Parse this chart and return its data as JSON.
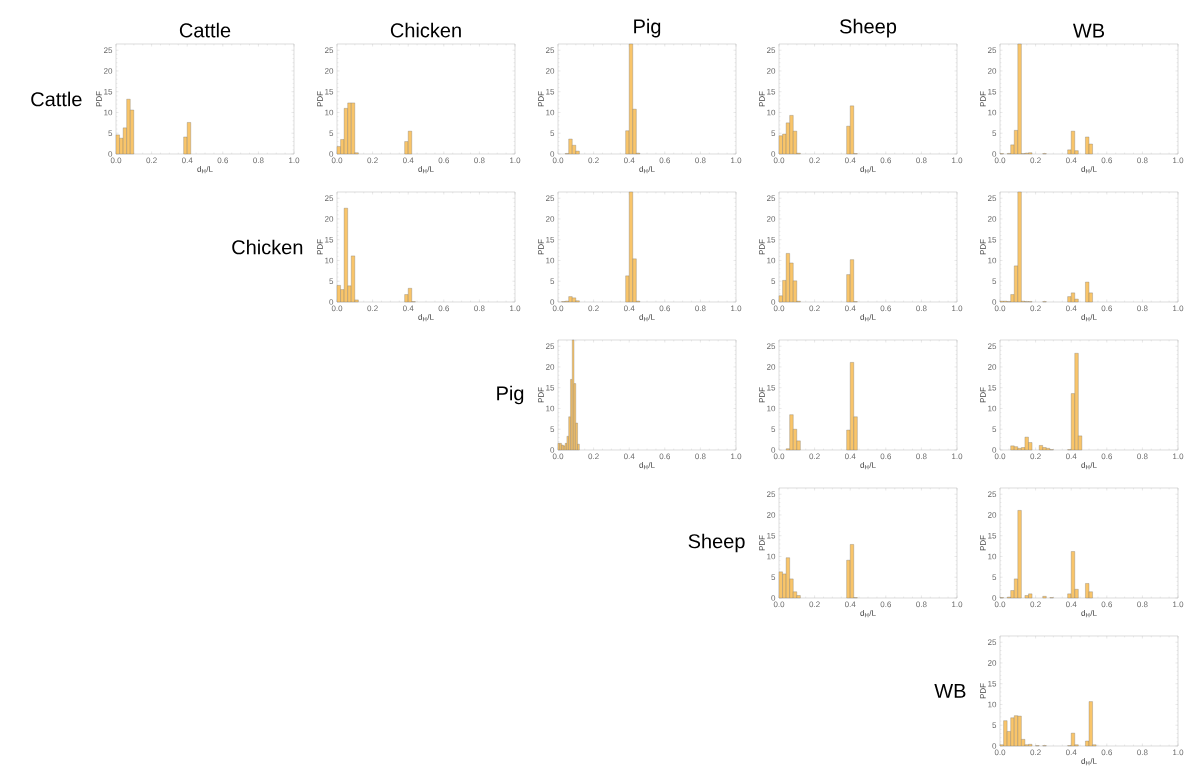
{
  "chart_data": [
    {
      "type": "histogram",
      "title": "Cattle",
      "annotations": [
        "Cattle"
      ],
      "xlabel": "d$_{H}$/L",
      "ylabel": "PDF",
      "color": "#f9c56a",
      "xlim": [
        0,
        1
      ],
      "ylim": [
        0,
        26.5
      ],
      "xticks": [
        {
          "value": 0,
          "label": "0.0"
        },
        {
          "value": 0.2,
          "label": "0.2"
        },
        {
          "value": 0.4,
          "label": "0.4"
        },
        {
          "value": 0.6,
          "label": "0.6"
        },
        {
          "value": 0.8,
          "label": "0.8"
        },
        {
          "value": 1,
          "label": "1.0"
        }
      ],
      "yticks": [
        0,
        5,
        10,
        15,
        20,
        25
      ],
      "bins": [
        0,
        0.02,
        0.04,
        0.06,
        0.08,
        0.1,
        0.12,
        0.14,
        0.16,
        0.18,
        0.2,
        0.22,
        0.24,
        0.26,
        0.28,
        0.3,
        0.32,
        0.34,
        0.36,
        0.38,
        0.4,
        0.42
      ],
      "values": [
        4.6,
        3.8,
        6.3,
        13.2,
        10.6,
        0,
        0,
        0,
        0,
        0,
        0,
        0,
        0,
        0,
        0,
        0,
        0,
        0,
        0,
        4.1,
        7.6
      ]
    },
    {
      "type": "histogram",
      "title": "Chicken",
      "xlabel": "d$_{H}$/L",
      "ylabel": "PDF",
      "color": "#f9c56a",
      "xlim": [
        0,
        1
      ],
      "ylim": [
        0,
        26.5
      ],
      "xticks": [
        {
          "value": 0,
          "label": "0.0"
        },
        {
          "value": 0.2,
          "label": "0.2"
        },
        {
          "value": 0.4,
          "label": "0.4"
        },
        {
          "value": 0.6,
          "label": "0.6"
        },
        {
          "value": 0.8,
          "label": "0.8"
        },
        {
          "value": 1,
          "label": "1.0"
        }
      ],
      "yticks": [
        0,
        5,
        10,
        15,
        20,
        25
      ],
      "bins": [
        0,
        0.02,
        0.04,
        0.06,
        0.08,
        0.1,
        0.12,
        0.14,
        0.16,
        0.18,
        0.2,
        0.22,
        0.24,
        0.26,
        0.28,
        0.3,
        0.32,
        0.34,
        0.36,
        0.38,
        0.4,
        0.42
      ],
      "values": [
        1.8,
        3.5,
        11.0,
        12.3,
        12.3,
        0.3,
        0,
        0,
        0,
        0,
        0,
        0,
        0,
        0,
        0,
        0,
        0,
        0,
        0,
        3.0,
        5.5
      ]
    },
    {
      "type": "histogram",
      "title": "Pig",
      "xlabel": "d$_{H}$/L",
      "ylabel": "PDF",
      "color": "#f9c56a",
      "xlim": [
        0,
        1
      ],
      "ylim": [
        0,
        26.5
      ],
      "xticks": [
        {
          "value": 0,
          "label": "0.0"
        },
        {
          "value": 0.2,
          "label": "0.2"
        },
        {
          "value": 0.4,
          "label": "0.4"
        },
        {
          "value": 0.6,
          "label": "0.6"
        },
        {
          "value": 0.8,
          "label": "0.8"
        },
        {
          "value": 1,
          "label": "1.0"
        }
      ],
      "yticks": [
        0,
        5,
        10,
        15,
        20,
        25
      ],
      "bins": [
        0,
        0.02,
        0.04,
        0.06,
        0.08,
        0.1,
        0.12,
        0.14,
        0.16,
        0.18,
        0.2,
        0.22,
        0.24,
        0.26,
        0.28,
        0.3,
        0.32,
        0.34,
        0.36,
        0.38,
        0.4,
        0.42,
        0.44,
        0.46
      ],
      "values": [
        0,
        0,
        0.1,
        3.6,
        2.1,
        0.7,
        0,
        0,
        0,
        0,
        0,
        0,
        0,
        0,
        0,
        0,
        0,
        0,
        0,
        5.6,
        26.5,
        10.8,
        0.2
      ]
    },
    {
      "type": "histogram",
      "title": "Sheep",
      "xlabel": "d$_{H}$/L",
      "ylabel": "PDF",
      "color": "#f9c56a",
      "xlim": [
        0,
        1
      ],
      "ylim": [
        0,
        26.5
      ],
      "xticks": [
        {
          "value": 0,
          "label": "0.0"
        },
        {
          "value": 0.2,
          "label": "0.2"
        },
        {
          "value": 0.4,
          "label": "0.4"
        },
        {
          "value": 0.6,
          "label": "0.6"
        },
        {
          "value": 0.8,
          "label": "0.8"
        },
        {
          "value": 1,
          "label": "1.0"
        }
      ],
      "yticks": [
        0,
        5,
        10,
        15,
        20,
        25
      ],
      "bins": [
        0,
        0.02,
        0.04,
        0.06,
        0.08,
        0.1,
        0.12,
        0.14,
        0.16,
        0.18,
        0.2,
        0.22,
        0.24,
        0.26,
        0.28,
        0.3,
        0.32,
        0.34,
        0.36,
        0.38,
        0.4,
        0.42,
        0.44
      ],
      "values": [
        4.4,
        4.8,
        7.5,
        9.3,
        5.5,
        0.2,
        0,
        0,
        0,
        0,
        0,
        0,
        0,
        0,
        0,
        0,
        0,
        0,
        0,
        6.7,
        11.6,
        0.1
      ]
    },
    {
      "type": "histogram",
      "title": "WB",
      "xlabel": "d$_{H}$/L",
      "ylabel": "PDF",
      "color": "#f9c56a",
      "xlim": [
        0,
        1
      ],
      "ylim": [
        0,
        26.5
      ],
      "xticks": [
        {
          "value": 0,
          "label": "0.0"
        },
        {
          "value": 0.2,
          "label": "0.2"
        },
        {
          "value": 0.4,
          "label": "0.4"
        },
        {
          "value": 0.6,
          "label": "0.6"
        },
        {
          "value": 0.8,
          "label": "0.8"
        },
        {
          "value": 1,
          "label": "1.0"
        }
      ],
      "yticks": [
        0,
        5,
        10,
        15,
        20,
        25
      ],
      "bins": [
        0,
        0.02,
        0.04,
        0.06,
        0.08,
        0.1,
        0.12,
        0.14,
        0.16,
        0.18,
        0.2,
        0.22,
        0.24,
        0.26,
        0.28,
        0.3,
        0.32,
        0.34,
        0.36,
        0.38,
        0.4,
        0.42,
        0.44,
        0.46,
        0.48,
        0.5,
        0.52
      ],
      "values": [
        0.1,
        0,
        0.1,
        2.2,
        5.7,
        26.5,
        0.1,
        0.2,
        0.3,
        0,
        0,
        0,
        0.1,
        0,
        0,
        0,
        0,
        0,
        0,
        1.0,
        5.5,
        0.8,
        0,
        0,
        4.1,
        2.4
      ]
    },
    {
      "type": "histogram",
      "annotations": [
        "Chicken"
      ],
      "xlabel": "d$_{H}$/L",
      "ylabel": "PDF",
      "color": "#f9c56a",
      "xlim": [
        0,
        1
      ],
      "ylim": [
        0,
        26.5
      ],
      "xticks": [
        {
          "value": 0,
          "label": "0.0"
        },
        {
          "value": 0.2,
          "label": "0.2"
        },
        {
          "value": 0.4,
          "label": "0.4"
        },
        {
          "value": 0.6,
          "label": "0.6"
        },
        {
          "value": 0.8,
          "label": "0.8"
        },
        {
          "value": 1,
          "label": "1.0"
        }
      ],
      "yticks": [
        0,
        5,
        10,
        15,
        20,
        25
      ],
      "bins": [
        0,
        0.02,
        0.04,
        0.06,
        0.08,
        0.1,
        0.12,
        0.14,
        0.16,
        0.18,
        0.2,
        0.22,
        0.24,
        0.26,
        0.28,
        0.3,
        0.32,
        0.34,
        0.36,
        0.38,
        0.4,
        0.42,
        0.44
      ],
      "values": [
        4.0,
        3.0,
        22.6,
        3.9,
        11.1,
        0.5,
        0,
        0,
        0,
        0,
        0,
        0,
        0,
        0,
        0,
        0,
        0,
        0,
        0,
        1.8,
        3.3,
        0.1
      ]
    },
    {
      "type": "histogram",
      "xlabel": "d$_{H}$/L",
      "ylabel": "PDF",
      "color": "#f9c56a",
      "xlim": [
        0,
        1
      ],
      "ylim": [
        0,
        26.5
      ],
      "xticks": [
        {
          "value": 0,
          "label": "0.0"
        },
        {
          "value": 0.2,
          "label": "0.2"
        },
        {
          "value": 0.4,
          "label": "0.4"
        },
        {
          "value": 0.6,
          "label": "0.6"
        },
        {
          "value": 0.8,
          "label": "0.8"
        },
        {
          "value": 1,
          "label": "1.0"
        }
      ],
      "yticks": [
        0,
        5,
        10,
        15,
        20,
        25
      ],
      "bins": [
        0,
        0.02,
        0.04,
        0.06,
        0.08,
        0.1,
        0.12,
        0.14,
        0.16,
        0.18,
        0.2,
        0.22,
        0.24,
        0.26,
        0.28,
        0.3,
        0.32,
        0.34,
        0.36,
        0.38,
        0.4,
        0.42,
        0.44,
        0.46
      ],
      "values": [
        0,
        0.1,
        0.2,
        1.3,
        1.0,
        0.3,
        0,
        0,
        0,
        0,
        0,
        0,
        0,
        0,
        0,
        0,
        0,
        0,
        0,
        6.3,
        26.5,
        10.4,
        0.2
      ]
    },
    {
      "type": "histogram",
      "xlabel": "d$_{H}$/L",
      "ylabel": "PDF",
      "color": "#f9c56a",
      "xlim": [
        0,
        1
      ],
      "ylim": [
        0,
        26.5
      ],
      "xticks": [
        {
          "value": 0,
          "label": "0.0"
        },
        {
          "value": 0.2,
          "label": "0.2"
        },
        {
          "value": 0.4,
          "label": "0.4"
        },
        {
          "value": 0.6,
          "label": "0.6"
        },
        {
          "value": 0.8,
          "label": "0.8"
        },
        {
          "value": 1,
          "label": "1.0"
        }
      ],
      "yticks": [
        0,
        5,
        10,
        15,
        20,
        25
      ],
      "bins": [
        0,
        0.02,
        0.04,
        0.06,
        0.08,
        0.1,
        0.12,
        0.14,
        0.16,
        0.18,
        0.2,
        0.22,
        0.24,
        0.26,
        0.28,
        0.3,
        0.32,
        0.34,
        0.36,
        0.38,
        0.4,
        0.42,
        0.44
      ],
      "values": [
        1.5,
        5.2,
        11.7,
        9.4,
        5.1,
        0.2,
        0,
        0,
        0,
        0,
        0,
        0,
        0,
        0,
        0,
        0,
        0,
        0,
        0,
        6.6,
        10.2,
        0.1
      ]
    },
    {
      "type": "histogram",
      "xlabel": "d$_{H}$/L",
      "ylabel": "PDF",
      "color": "#f9c56a",
      "xlim": [
        0,
        1
      ],
      "ylim": [
        0,
        26.5
      ],
      "xticks": [
        {
          "value": 0,
          "label": "0.0"
        },
        {
          "value": 0.2,
          "label": "0.2"
        },
        {
          "value": 0.4,
          "label": "0.4"
        },
        {
          "value": 0.6,
          "label": "0.6"
        },
        {
          "value": 0.8,
          "label": "0.8"
        },
        {
          "value": 1,
          "label": "1.0"
        }
      ],
      "yticks": [
        0,
        5,
        10,
        15,
        20,
        25
      ],
      "bins": [
        0,
        0.02,
        0.04,
        0.06,
        0.08,
        0.1,
        0.12,
        0.14,
        0.16,
        0.18,
        0.2,
        0.22,
        0.24,
        0.26,
        0.28,
        0.3,
        0.32,
        0.34,
        0.36,
        0.38,
        0.4,
        0.42,
        0.44,
        0.46,
        0.48,
        0.5,
        0.52
      ],
      "values": [
        0.2,
        0.2,
        0.1,
        1.8,
        8.7,
        26.5,
        0.2,
        0.1,
        0.1,
        0,
        0,
        0,
        0.1,
        0,
        0,
        0,
        0,
        0,
        0,
        1.3,
        2.2,
        0.7,
        0,
        0,
        4.8,
        2.2
      ]
    },
    {
      "type": "histogram",
      "annotations": [
        "Pig"
      ],
      "xlabel": "d$_{H}$/L",
      "ylabel": "PDF",
      "color": "#f9c56a",
      "xlim": [
        0,
        1
      ],
      "ylim": [
        0,
        26.5
      ],
      "xticks": [
        {
          "value": 0,
          "label": "0.0"
        },
        {
          "value": 0.2,
          "label": "0.2"
        },
        {
          "value": 0.4,
          "label": "0.4"
        },
        {
          "value": 0.6,
          "label": "0.6"
        },
        {
          "value": 0.8,
          "label": "0.8"
        },
        {
          "value": 1,
          "label": "1.0"
        }
      ],
      "yticks": [
        0,
        5,
        10,
        15,
        20,
        25
      ],
      "bins": [
        0,
        0.01,
        0.02,
        0.03,
        0.04,
        0.05,
        0.06,
        0.07,
        0.08,
        0.09,
        0.1,
        0.11,
        0.12
      ],
      "values": [
        1.6,
        1.6,
        1.2,
        1.0,
        1.6,
        3.3,
        8.0,
        17.0,
        26.5,
        16.0,
        6.5,
        1.4
      ]
    },
    {
      "type": "histogram",
      "xlabel": "d$_{H}$/L",
      "ylabel": "PDF",
      "color": "#f9c56a",
      "xlim": [
        0,
        1
      ],
      "ylim": [
        0,
        26.5
      ],
      "xticks": [
        {
          "value": 0,
          "label": "0.0"
        },
        {
          "value": 0.2,
          "label": "0.2"
        },
        {
          "value": 0.4,
          "label": "0.4"
        },
        {
          "value": 0.6,
          "label": "0.6"
        },
        {
          "value": 0.8,
          "label": "0.8"
        },
        {
          "value": 1,
          "label": "1.0"
        }
      ],
      "yticks": [
        0,
        5,
        10,
        15,
        20,
        25
      ],
      "bins": [
        0,
        0.02,
        0.04,
        0.06,
        0.08,
        0.1,
        0.12,
        0.14,
        0.16,
        0.18,
        0.2,
        0.22,
        0.24,
        0.26,
        0.28,
        0.3,
        0.32,
        0.34,
        0.36,
        0.38,
        0.4,
        0.42,
        0.44
      ],
      "values": [
        0,
        0,
        0.3,
        8.5,
        5.0,
        2.2,
        0,
        0,
        0,
        0,
        0,
        0,
        0,
        0,
        0,
        0,
        0,
        0,
        0,
        4.8,
        21.1,
        8.0
      ]
    },
    {
      "type": "histogram",
      "xlabel": "d$_{H}$/L",
      "ylabel": "PDF",
      "color": "#f9c56a",
      "xlim": [
        0,
        1
      ],
      "ylim": [
        0,
        26.5
      ],
      "xticks": [
        {
          "value": 0,
          "label": "0.0"
        },
        {
          "value": 0.2,
          "label": "0.2"
        },
        {
          "value": 0.4,
          "label": "0.4"
        },
        {
          "value": 0.6,
          "label": "0.6"
        },
        {
          "value": 0.8,
          "label": "0.8"
        },
        {
          "value": 1,
          "label": "1.0"
        }
      ],
      "yticks": [
        0,
        5,
        10,
        15,
        20,
        25
      ],
      "bins": [
        0,
        0.02,
        0.04,
        0.06,
        0.08,
        0.1,
        0.12,
        0.14,
        0.16,
        0.18,
        0.2,
        0.22,
        0.24,
        0.26,
        0.28,
        0.3,
        0.32,
        0.34,
        0.36,
        0.38,
        0.4,
        0.42,
        0.44,
        0.46
      ],
      "values": [
        0,
        0,
        0,
        1.0,
        0.8,
        0.4,
        0.6,
        3.1,
        1.8,
        0,
        0,
        1.1,
        0.6,
        0.4,
        0.1,
        0,
        0,
        0,
        0,
        0.1,
        13.6,
        23.3,
        3.4
      ]
    },
    {
      "type": "histogram",
      "annotations": [
        "Sheep"
      ],
      "xlabel": "d$_{H}$/L",
      "ylabel": "PDF",
      "color": "#f9c56a",
      "xlim": [
        0,
        1
      ],
      "ylim": [
        0,
        26.5
      ],
      "xticks": [
        {
          "value": 0,
          "label": "0.0"
        },
        {
          "value": 0.2,
          "label": "0.2"
        },
        {
          "value": 0.4,
          "label": "0.4"
        },
        {
          "value": 0.6,
          "label": "0.6"
        },
        {
          "value": 0.8,
          "label": "0.8"
        },
        {
          "value": 1,
          "label": "1.0"
        }
      ],
      "yticks": [
        0,
        5,
        10,
        15,
        20,
        25
      ],
      "bins": [
        0,
        0.02,
        0.04,
        0.06,
        0.08,
        0.1,
        0.12,
        0.14,
        0.16,
        0.18,
        0.2,
        0.22,
        0.24,
        0.26,
        0.28,
        0.3,
        0.32,
        0.34,
        0.36,
        0.38,
        0.4,
        0.42,
        0.44
      ],
      "values": [
        6.3,
        5.8,
        9.7,
        4.6,
        1.5,
        0.6,
        0,
        0,
        0,
        0,
        0,
        0,
        0,
        0,
        0,
        0,
        0,
        0,
        0,
        9.1,
        12.9,
        0.1
      ]
    },
    {
      "type": "histogram",
      "xlabel": "d$_{H}$/L",
      "ylabel": "PDF",
      "color": "#f9c56a",
      "xlim": [
        0,
        1
      ],
      "ylim": [
        0,
        26.5
      ],
      "xticks": [
        {
          "value": 0,
          "label": "0.0"
        },
        {
          "value": 0.2,
          "label": "0.2"
        },
        {
          "value": 0.4,
          "label": "0.4"
        },
        {
          "value": 0.6,
          "label": "0.6"
        },
        {
          "value": 0.8,
          "label": "0.8"
        },
        {
          "value": 1,
          "label": "1.0"
        }
      ],
      "yticks": [
        0,
        5,
        10,
        15,
        20,
        25
      ],
      "bins": [
        0,
        0.02,
        0.04,
        0.06,
        0.08,
        0.1,
        0.12,
        0.14,
        0.16,
        0.18,
        0.2,
        0.22,
        0.24,
        0.26,
        0.28,
        0.3,
        0.32,
        0.34,
        0.36,
        0.38,
        0.4,
        0.42,
        0.44,
        0.46,
        0.48,
        0.5,
        0.52
      ],
      "values": [
        0.1,
        0,
        0.2,
        1.8,
        4.6,
        21.1,
        0,
        0.6,
        1.0,
        0,
        0,
        0,
        0.4,
        0,
        0.1,
        0,
        0,
        0,
        0,
        1.0,
        11.2,
        2.1,
        0,
        0,
        3.5,
        1.5
      ]
    },
    {
      "type": "histogram",
      "annotations": [
        "WB"
      ],
      "xlabel": "d$_{H}$/L",
      "ylabel": "PDF",
      "color": "#f9c56a",
      "xlim": [
        0,
        1
      ],
      "ylim": [
        0,
        26.5
      ],
      "xticks": [
        {
          "value": 0,
          "label": "0.0"
        },
        {
          "value": 0.2,
          "label": "0.2"
        },
        {
          "value": 0.4,
          "label": "0.4"
        },
        {
          "value": 0.6,
          "label": "0.6"
        },
        {
          "value": 0.8,
          "label": "0.8"
        },
        {
          "value": 1,
          "label": "1.0"
        }
      ],
      "yticks": [
        0,
        5,
        10,
        15,
        20,
        25
      ],
      "bins": [
        0,
        0.02,
        0.04,
        0.06,
        0.08,
        0.1,
        0.12,
        0.14,
        0.16,
        0.18,
        0.2,
        0.22,
        0.24,
        0.26,
        0.28,
        0.3,
        0.32,
        0.34,
        0.36,
        0.38,
        0.4,
        0.42,
        0.44,
        0.46,
        0.48,
        0.5,
        0.52,
        0.54
      ],
      "values": [
        0.3,
        6.1,
        3.5,
        6.8,
        7.3,
        7.2,
        1.6,
        0.3,
        0.4,
        0,
        0.1,
        0,
        0.1,
        0,
        0,
        0,
        0,
        0,
        0,
        0.1,
        3.1,
        0.3,
        0,
        0,
        1.2,
        10.7,
        0.3
      ]
    }
  ]
}
